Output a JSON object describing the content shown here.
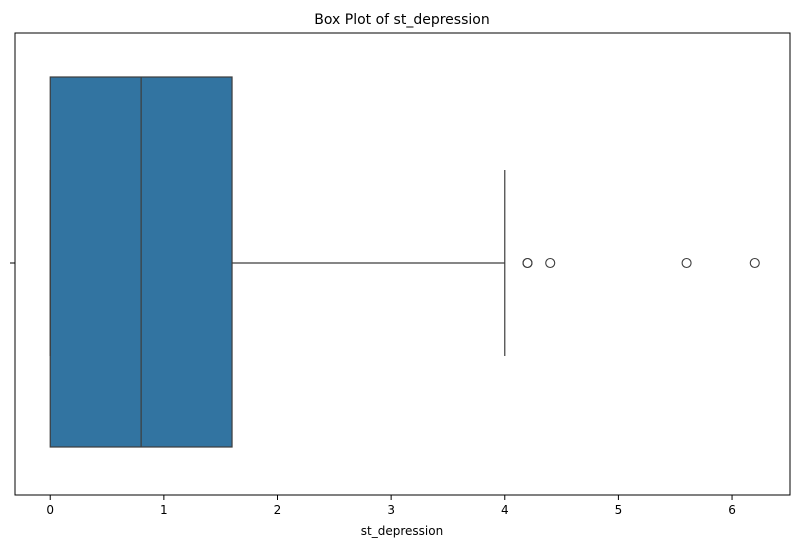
{
  "chart_data": {
    "type": "box",
    "title": "Box Plot of st_depression",
    "xlabel": "st_depression",
    "ylabel": "",
    "xlim": [
      -0.31,
      6.51
    ],
    "x_ticks": [
      "0",
      "1",
      "2",
      "3",
      "4",
      "5",
      "6"
    ],
    "x_tick_values": [
      0,
      1,
      2,
      3,
      4,
      5,
      6
    ],
    "grid": false,
    "box": {
      "min_whisker": 0.0,
      "q1": 0.0,
      "median": 0.8,
      "q3": 1.6,
      "max_whisker": 4.0,
      "outliers": [
        4.2,
        4.2,
        4.4,
        5.6,
        6.2
      ]
    },
    "colors": {
      "box_fill": "#3274a1",
      "line": "#3d3d3d"
    }
  }
}
